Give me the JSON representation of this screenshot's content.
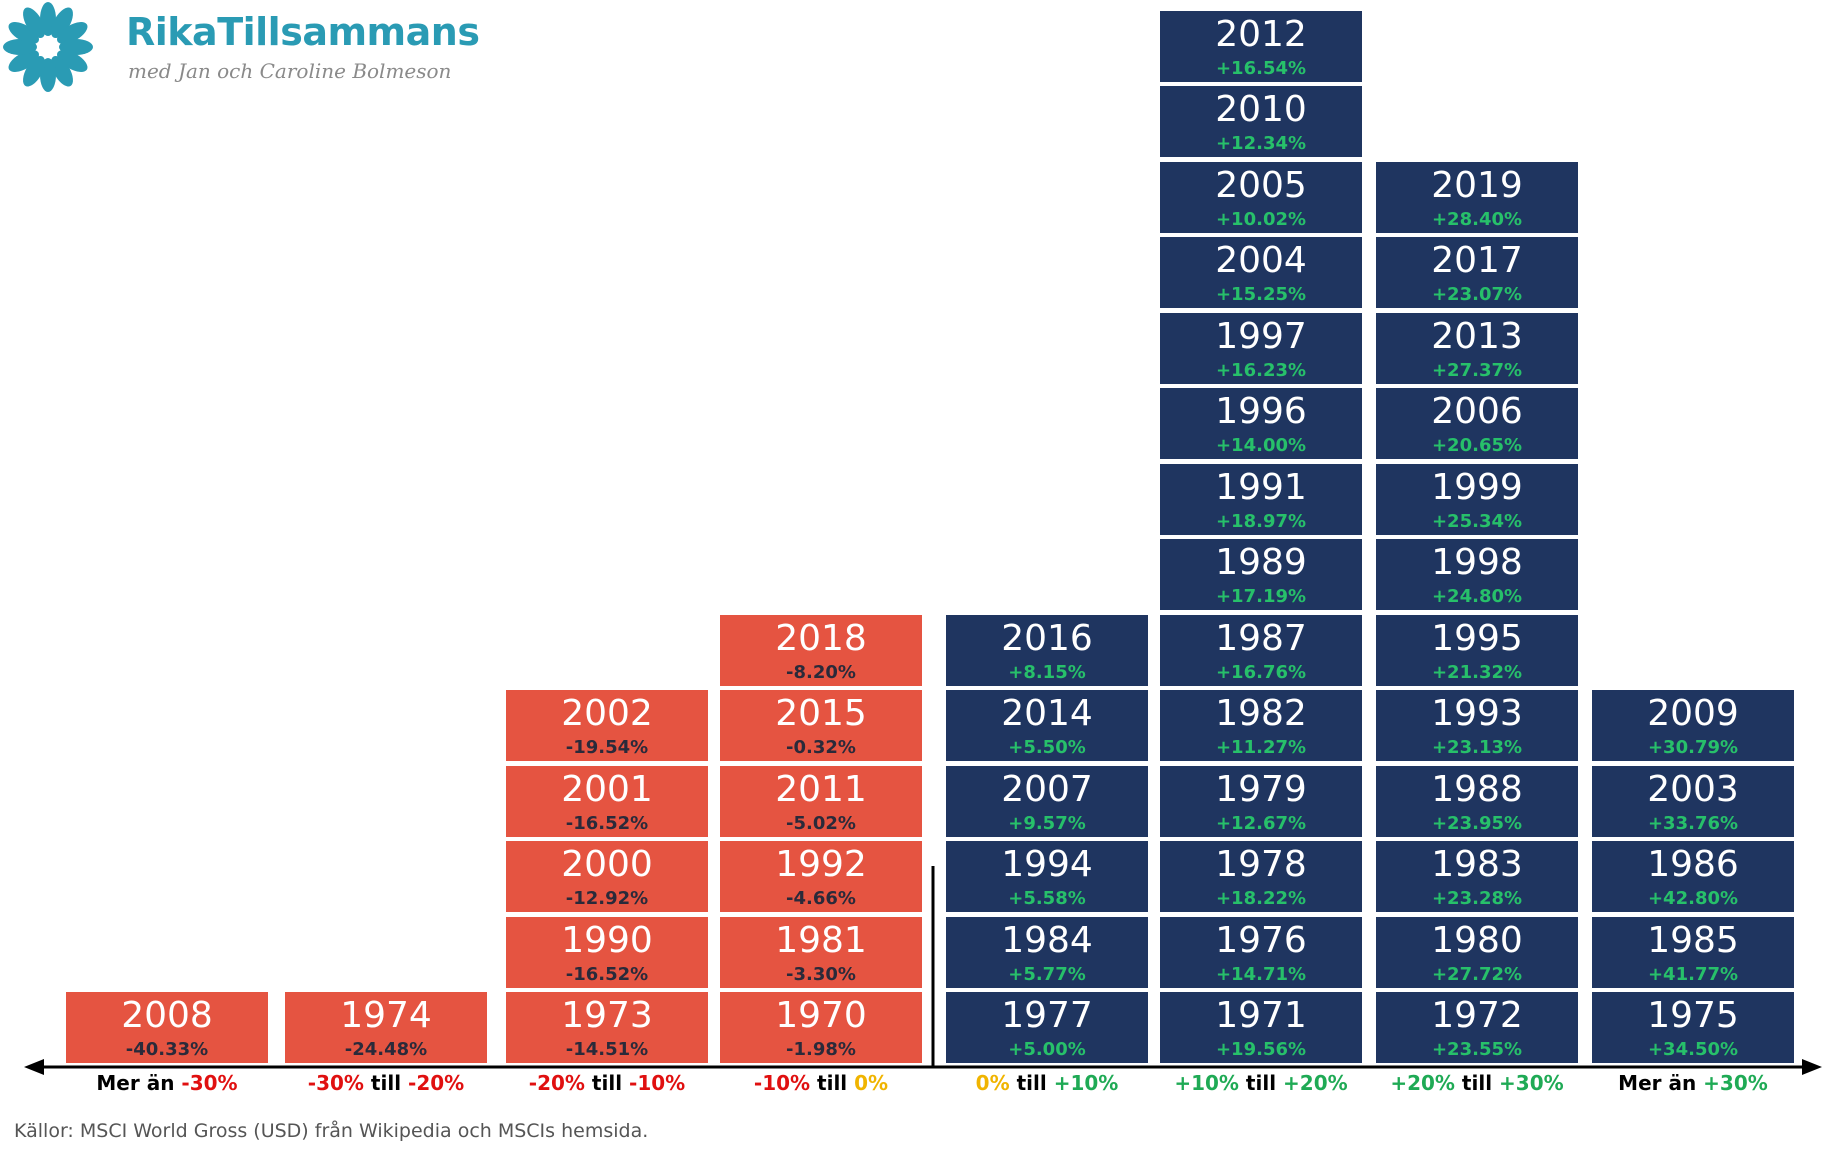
{
  "brand": {
    "name": "RikaTillsammans",
    "tagline": "med Jan och Caroline Bolmeson",
    "color": "#2a9bb4"
  },
  "source": "Källor: MSCI World Gross (USD) från Wikipedia och MSCIs hemsida.",
  "colors": {
    "negative_box": "#e55441",
    "positive_box": "#1f3560",
    "negative_text": "#e01010",
    "zero_text": "#f0b400",
    "positive_text": "#1faa55"
  },
  "chart_data": {
    "type": "stacked-histogram",
    "title": "",
    "bins": [
      {
        "label_parts": [
          {
            "text": "Mer än ",
            "tone": "plain"
          },
          {
            "text": "-30%",
            "tone": "neg"
          }
        ],
        "sign": "negative",
        "years": [
          {
            "year": "2008",
            "return": "-40.33%"
          }
        ]
      },
      {
        "label_parts": [
          {
            "text": "-30%",
            "tone": "neg"
          },
          {
            "text": " till ",
            "tone": "plain"
          },
          {
            "text": "-20%",
            "tone": "neg"
          }
        ],
        "sign": "negative",
        "years": [
          {
            "year": "1974",
            "return": "-24.48%"
          }
        ]
      },
      {
        "label_parts": [
          {
            "text": "-20%",
            "tone": "neg"
          },
          {
            "text": " till ",
            "tone": "plain"
          },
          {
            "text": "-10%",
            "tone": "neg"
          }
        ],
        "sign": "negative",
        "years": [
          {
            "year": "1973",
            "return": "-14.51%"
          },
          {
            "year": "1990",
            "return": "-16.52%"
          },
          {
            "year": "2000",
            "return": "-12.92%"
          },
          {
            "year": "2001",
            "return": "-16.52%"
          },
          {
            "year": "2002",
            "return": "-19.54%"
          }
        ]
      },
      {
        "label_parts": [
          {
            "text": "-10%",
            "tone": "neg"
          },
          {
            "text": " till ",
            "tone": "plain"
          },
          {
            "text": "0%",
            "tone": "zero"
          }
        ],
        "sign": "negative",
        "years": [
          {
            "year": "1970",
            "return": "-1.98%"
          },
          {
            "year": "1981",
            "return": "-3.30%"
          },
          {
            "year": "1992",
            "return": "-4.66%"
          },
          {
            "year": "2011",
            "return": "-5.02%"
          },
          {
            "year": "2015",
            "return": "-0.32%"
          },
          {
            "year": "2018",
            "return": "-8.20%"
          }
        ]
      },
      {
        "label_parts": [
          {
            "text": "0%",
            "tone": "zero"
          },
          {
            "text": " till ",
            "tone": "plain"
          },
          {
            "text": "+10%",
            "tone": "pos"
          }
        ],
        "sign": "positive",
        "years": [
          {
            "year": "1977",
            "return": "+5.00%"
          },
          {
            "year": "1984",
            "return": "+5.77%"
          },
          {
            "year": "1994",
            "return": "+5.58%"
          },
          {
            "year": "2007",
            "return": "+9.57%"
          },
          {
            "year": "2014",
            "return": "+5.50%"
          },
          {
            "year": "2016",
            "return": "+8.15%"
          }
        ]
      },
      {
        "label_parts": [
          {
            "text": "+10%",
            "tone": "pos"
          },
          {
            "text": " till ",
            "tone": "plain"
          },
          {
            "text": "+20%",
            "tone": "pos"
          }
        ],
        "sign": "positive",
        "years": [
          {
            "year": "1971",
            "return": "+19.56%"
          },
          {
            "year": "1976",
            "return": "+14.71%"
          },
          {
            "year": "1978",
            "return": "+18.22%"
          },
          {
            "year": "1979",
            "return": "+12.67%"
          },
          {
            "year": "1982",
            "return": "+11.27%"
          },
          {
            "year": "1987",
            "return": "+16.76%"
          },
          {
            "year": "1989",
            "return": "+17.19%"
          },
          {
            "year": "1991",
            "return": "+18.97%"
          },
          {
            "year": "1996",
            "return": "+14.00%"
          },
          {
            "year": "1997",
            "return": "+16.23%"
          },
          {
            "year": "2004",
            "return": "+15.25%"
          },
          {
            "year": "2005",
            "return": "+10.02%"
          },
          {
            "year": "2010",
            "return": "+12.34%"
          },
          {
            "year": "2012",
            "return": "+16.54%"
          }
        ]
      },
      {
        "label_parts": [
          {
            "text": "+20%",
            "tone": "pos"
          },
          {
            "text": " till ",
            "tone": "plain"
          },
          {
            "text": "+30%",
            "tone": "pos"
          }
        ],
        "sign": "positive",
        "years": [
          {
            "year": "1972",
            "return": "+23.55%"
          },
          {
            "year": "1980",
            "return": "+27.72%"
          },
          {
            "year": "1983",
            "return": "+23.28%"
          },
          {
            "year": "1988",
            "return": "+23.95%"
          },
          {
            "year": "1993",
            "return": "+23.13%"
          },
          {
            "year": "1995",
            "return": "+21.32%"
          },
          {
            "year": "1998",
            "return": "+24.80%"
          },
          {
            "year": "1999",
            "return": "+25.34%"
          },
          {
            "year": "2006",
            "return": "+20.65%"
          },
          {
            "year": "2013",
            "return": "+27.37%"
          },
          {
            "year": "2017",
            "return": "+23.07%"
          },
          {
            "year": "2019",
            "return": "+28.40%"
          }
        ]
      },
      {
        "label_parts": [
          {
            "text": "Mer än ",
            "tone": "plain"
          },
          {
            "text": "+30%",
            "tone": "pos"
          }
        ],
        "sign": "positive",
        "years": [
          {
            "year": "1975",
            "return": "+34.50%"
          },
          {
            "year": "1985",
            "return": "+41.77%"
          },
          {
            "year": "1986",
            "return": "+42.80%"
          },
          {
            "year": "2003",
            "return": "+33.76%"
          },
          {
            "year": "2009",
            "return": "+30.79%"
          }
        ]
      }
    ]
  }
}
